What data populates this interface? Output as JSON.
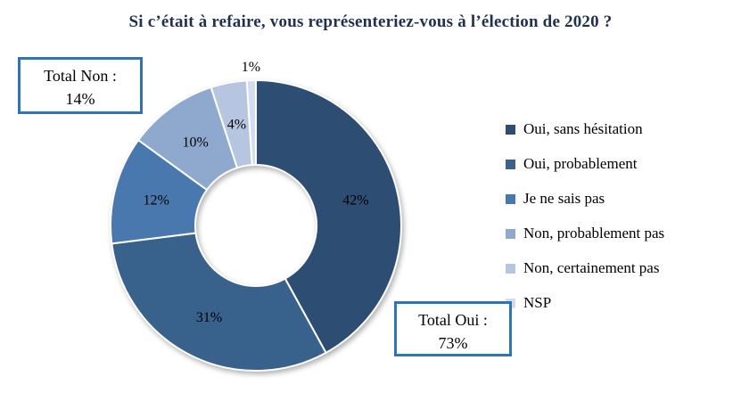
{
  "chart_data": {
    "type": "pie",
    "donut": true,
    "title": "Si c’était à refaire, vous représenteriez-vous à l’élection de 2020 ?",
    "categories": [
      "Oui, sans hésitation",
      "Oui, probablement",
      "Je ne sais pas",
      "Non, probablement pas",
      "Non, certainement pas",
      "NSP"
    ],
    "values": [
      42,
      31,
      12,
      10,
      4,
      1
    ],
    "labels": [
      "42%",
      "31%",
      "12%",
      "10%",
      "4%",
      "1%"
    ],
    "colors": [
      "#2e4d73",
      "#38618c",
      "#4878ad",
      "#8fa9ce",
      "#b7c6e0",
      "#d3ddef"
    ],
    "legend_position": "right",
    "start_angle_deg": 0,
    "direction": "clockwise"
  },
  "annotations": {
    "total_non": {
      "line1": "Total Non :",
      "line2": "14%"
    },
    "total_oui": {
      "line1": "Total Oui :",
      "line2": "73%"
    }
  },
  "style": {
    "accent_border": "#2e75b6",
    "title_color": "#1f3050"
  }
}
